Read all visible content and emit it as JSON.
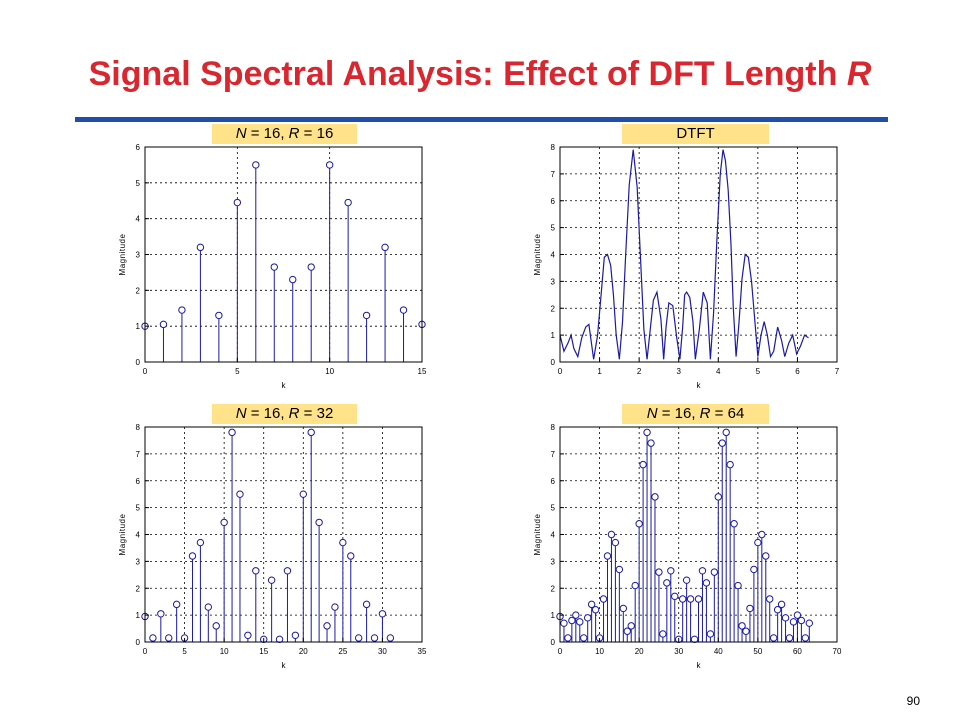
{
  "slide": {
    "title_main": "Signal Spectral Analysis: Effect of DFT Length ",
    "title_var": "R",
    "page_number": "90"
  },
  "colors": {
    "title": "#d9262f",
    "rule": "#1f4fa8",
    "label_bg": "#ffe28a",
    "stem": "#1a1aa6",
    "grid": "#000000"
  },
  "panels": [
    {
      "label_n": "N",
      "label_mid": " = 16, ",
      "label_r": "R",
      "label_end": " = 16",
      "label_text": ""
    },
    {
      "label_n": "",
      "label_mid": "",
      "label_r": "",
      "label_end": "",
      "label_text": "DTFT"
    },
    {
      "label_n": "N",
      "label_mid": " = 16, ",
      "label_r": "R",
      "label_end": " = 32",
      "label_text": ""
    },
    {
      "label_n": "N",
      "label_mid": " = 16, ",
      "label_r": "R",
      "label_end": " = 64",
      "label_text": ""
    }
  ],
  "chart_data": [
    {
      "type": "stem",
      "xlabel": "k",
      "ylabel": "Magnitude",
      "xlim": [
        0,
        15
      ],
      "ylim": [
        0,
        6
      ],
      "xticks": [
        0,
        5,
        10,
        15
      ],
      "yticks": [
        0,
        1,
        2,
        3,
        4,
        5,
        6
      ],
      "grid": true,
      "x": [
        0,
        1,
        2,
        3,
        4,
        5,
        6,
        7,
        8,
        9,
        10,
        11,
        12,
        13,
        14,
        15
      ],
      "values": [
        1.0,
        1.05,
        1.45,
        3.2,
        1.3,
        4.45,
        5.5,
        2.65,
        2.3,
        2.65,
        5.5,
        4.45,
        1.3,
        3.2,
        1.45,
        1.05
      ]
    },
    {
      "type": "line",
      "xlabel": "k",
      "ylabel": "Magnitude",
      "xlim": [
        0,
        7
      ],
      "ylim": [
        0,
        8
      ],
      "xticks": [
        0,
        1,
        2,
        3,
        4,
        5,
        6,
        7
      ],
      "yticks": [
        0,
        1,
        2,
        3,
        4,
        5,
        6,
        7,
        8
      ],
      "grid": true,
      "x": [
        0.0,
        0.1,
        0.2,
        0.28,
        0.35,
        0.45,
        0.55,
        0.65,
        0.73,
        0.85,
        0.95,
        1.05,
        1.12,
        1.2,
        1.28,
        1.35,
        1.42,
        1.5,
        1.58,
        1.66,
        1.75,
        1.85,
        1.95,
        2.03,
        2.12,
        2.2,
        2.28,
        2.36,
        2.45,
        2.55,
        2.62,
        2.68,
        2.75,
        2.85,
        2.95,
        3.03,
        3.1,
        3.15,
        3.2,
        3.28,
        3.36,
        3.42,
        3.52,
        3.62,
        3.72,
        3.8,
        3.88,
        3.96,
        4.05,
        4.12,
        4.18,
        4.25,
        4.32,
        4.38,
        4.45,
        4.52,
        4.6,
        4.68,
        4.76,
        4.84,
        4.92,
        5.0,
        5.08,
        5.16,
        5.24,
        5.32,
        5.4,
        5.5,
        5.6,
        5.68,
        5.78,
        5.88,
        5.98,
        6.08,
        6.18,
        6.28
      ],
      "values": [
        1.0,
        0.4,
        0.7,
        1.0,
        0.5,
        0.2,
        0.9,
        1.3,
        1.4,
        0.1,
        1.0,
        2.7,
        3.9,
        4.0,
        3.6,
        2.5,
        1.0,
        0.1,
        1.5,
        4.0,
        6.6,
        7.9,
        6.5,
        4.0,
        1.2,
        0.1,
        1.2,
        2.3,
        2.6,
        1.6,
        0.1,
        1.3,
        2.2,
        2.1,
        0.9,
        0.1,
        1.3,
        2.5,
        2.6,
        2.4,
        1.5,
        0.1,
        1.2,
        2.6,
        2.2,
        0.1,
        1.8,
        4.4,
        7.0,
        7.9,
        7.5,
        6.4,
        4.4,
        2.0,
        0.2,
        1.4,
        3.1,
        4.0,
        3.9,
        3.0,
        1.6,
        0.2,
        1.0,
        1.5,
        1.0,
        0.2,
        0.4,
        1.3,
        0.8,
        0.2,
        0.7,
        1.0,
        0.3,
        0.6,
        1.0,
        0.9
      ]
    },
    {
      "type": "stem",
      "xlabel": "k",
      "ylabel": "Magnitude",
      "xlim": [
        0,
        35
      ],
      "ylim": [
        0,
        8
      ],
      "xticks": [
        0,
        5,
        10,
        15,
        20,
        25,
        30,
        35
      ],
      "yticks": [
        0,
        1,
        2,
        3,
        4,
        5,
        6,
        7,
        8
      ],
      "grid": true,
      "x": [
        0,
        1,
        2,
        3,
        4,
        5,
        6,
        7,
        8,
        9,
        10,
        11,
        12,
        13,
        14,
        15,
        16,
        17,
        18,
        19,
        20,
        21,
        22,
        23,
        24,
        25,
        26,
        27,
        28,
        29,
        30,
        31
      ],
      "values": [
        0.95,
        0.15,
        1.05,
        0.15,
        1.4,
        0.15,
        3.2,
        3.7,
        1.3,
        0.6,
        4.45,
        7.8,
        5.5,
        0.25,
        2.65,
        0.1,
        2.3,
        0.1,
        2.65,
        0.25,
        5.5,
        7.8,
        4.45,
        0.6,
        1.3,
        3.7,
        3.2,
        0.15,
        1.4,
        0.15,
        1.05,
        0.15
      ]
    },
    {
      "type": "stem",
      "xlabel": "k",
      "ylabel": "Magnitude",
      "xlim": [
        0,
        70
      ],
      "ylim": [
        0,
        8
      ],
      "xticks": [
        0,
        10,
        20,
        30,
        40,
        50,
        60,
        70
      ],
      "yticks": [
        0,
        1,
        2,
        3,
        4,
        5,
        6,
        7,
        8
      ],
      "grid": true,
      "x": [
        0,
        1,
        2,
        3,
        4,
        5,
        6,
        7,
        8,
        9,
        10,
        11,
        12,
        13,
        14,
        15,
        16,
        17,
        18,
        19,
        20,
        21,
        22,
        23,
        24,
        25,
        26,
        27,
        28,
        29,
        30,
        31,
        32,
        33,
        34,
        35,
        36,
        37,
        38,
        39,
        40,
        41,
        42,
        43,
        44,
        45,
        46,
        47,
        48,
        49,
        50,
        51,
        52,
        53,
        54,
        55,
        56,
        57,
        58,
        59,
        60,
        61,
        62,
        63
      ],
      "values": [
        0.95,
        0.7,
        0.15,
        0.8,
        1.0,
        0.75,
        0.15,
        0.9,
        1.4,
        1.2,
        0.15,
        1.6,
        3.2,
        4.0,
        3.7,
        2.7,
        1.25,
        0.4,
        0.6,
        2.1,
        4.4,
        6.6,
        7.8,
        7.4,
        5.4,
        2.6,
        0.3,
        2.2,
        2.65,
        1.7,
        0.1,
        1.6,
        2.3,
        1.6,
        0.1,
        1.6,
        2.65,
        2.2,
        0.3,
        2.6,
        5.4,
        7.4,
        7.8,
        6.6,
        4.4,
        2.1,
        0.6,
        0.4,
        1.25,
        2.7,
        3.7,
        4.0,
        3.2,
        1.6,
        0.15,
        1.2,
        1.4,
        0.9,
        0.15,
        0.75,
        1.0,
        0.8,
        0.15,
        0.7
      ]
    }
  ]
}
